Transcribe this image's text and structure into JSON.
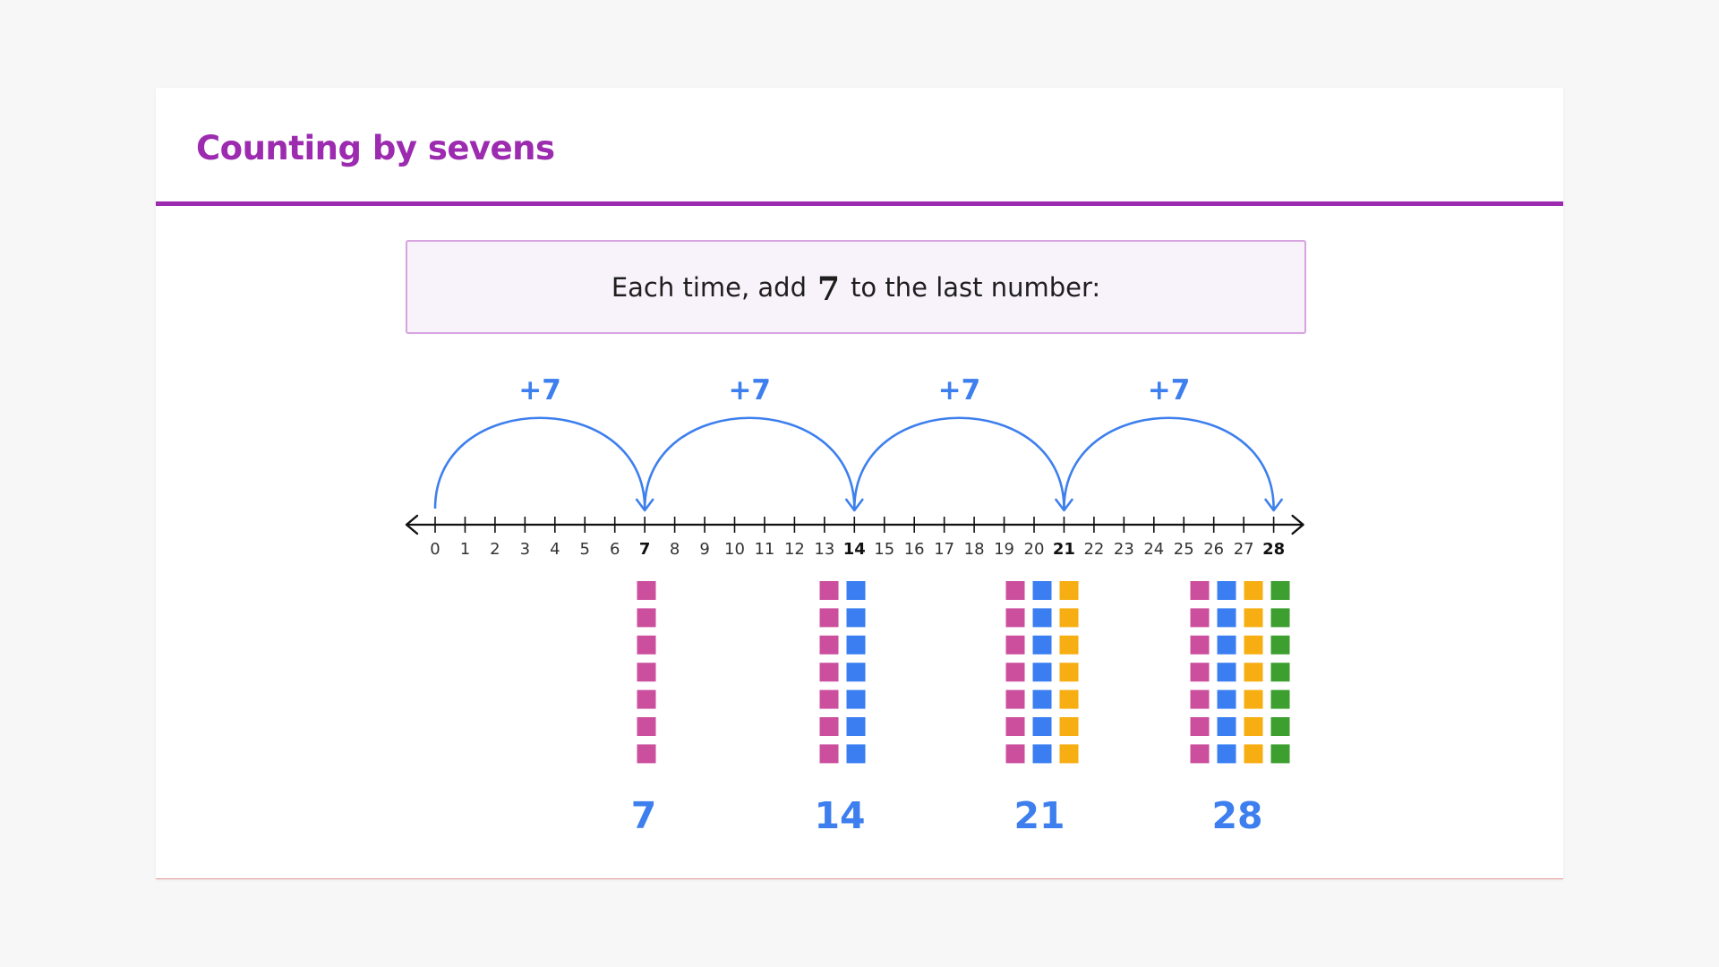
{
  "slide": {
    "title": "Counting by sevens",
    "instruction_before": "Each time, add",
    "instruction_number": "7",
    "instruction_after": "to the last number:"
  },
  "number_line": {
    "min": 0,
    "max": 28,
    "highlighted": [
      7,
      14,
      21,
      28
    ],
    "jump_label": "+7",
    "jumps": [
      [
        0,
        7
      ],
      [
        7,
        14
      ],
      [
        14,
        21
      ],
      [
        21,
        28
      ]
    ]
  },
  "groups": [
    {
      "total": "7",
      "columns": 1
    },
    {
      "total": "14",
      "columns": 2
    },
    {
      "total": "21",
      "columns": 3
    },
    {
      "total": "28",
      "columns": 4
    }
  ],
  "blocks_per_column": 7,
  "colors": {
    "title": "#9c2bb0",
    "arc": "#3d7fee",
    "label": "#3d7fee",
    "column_colors": [
      "#cc4f9e",
      "#3a7ef2",
      "#f6ae12",
      "#3c9f2f"
    ]
  }
}
